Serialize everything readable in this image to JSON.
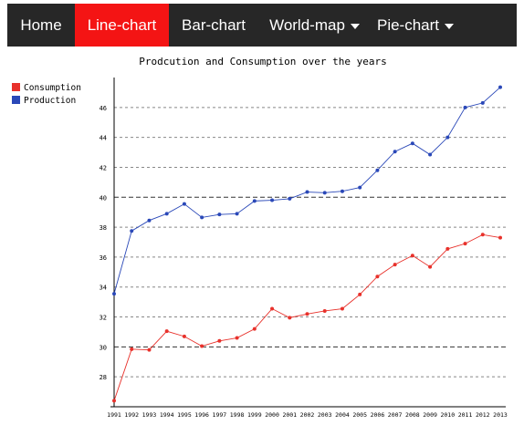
{
  "nav": {
    "items": [
      {
        "label": "Home",
        "active": false,
        "dropdown": false,
        "name": "nav-home"
      },
      {
        "label": "Line-chart",
        "active": true,
        "dropdown": false,
        "name": "nav-line-chart"
      },
      {
        "label": "Bar-chart",
        "active": false,
        "dropdown": false,
        "name": "nav-bar-chart"
      },
      {
        "label": "World-map",
        "active": false,
        "dropdown": true,
        "name": "nav-world-map"
      },
      {
        "label": "Pie-chart",
        "active": false,
        "dropdown": true,
        "name": "nav-pie-chart"
      }
    ],
    "bg_color": "#272727",
    "active_color": "#f41414"
  },
  "chart_data": {
    "type": "line",
    "title": "Prodcution and Consumption over the years",
    "xlabel": "",
    "ylabel": "",
    "x": [
      1991,
      1992,
      1993,
      1994,
      1995,
      1996,
      1997,
      1998,
      1999,
      2000,
      2001,
      2002,
      2003,
      2004,
      2005,
      2006,
      2007,
      2008,
      2009,
      2010,
      2011,
      2012,
      2013
    ],
    "ylim": [
      26,
      48
    ],
    "yticks": [
      28,
      30,
      32,
      34,
      36,
      38,
      40,
      42,
      44,
      46
    ],
    "grid": true,
    "legend_position": "top-left",
    "series": [
      {
        "name": "Consumption",
        "color": "#e8312b",
        "values": [
          26.4,
          29.85,
          29.8,
          31.05,
          30.7,
          30.05,
          30.4,
          30.6,
          31.2,
          32.55,
          31.95,
          32.2,
          32.4,
          32.55,
          33.5,
          34.7,
          35.5,
          36.1,
          35.35,
          36.55,
          36.9,
          37.5,
          37.3
        ]
      },
      {
        "name": "Production",
        "color": "#2a48b8",
        "values": [
          33.55,
          37.75,
          38.45,
          38.9,
          39.55,
          38.65,
          38.85,
          38.9,
          39.75,
          39.8,
          39.9,
          40.35,
          40.3,
          40.4,
          40.65,
          41.8,
          43.05,
          43.6,
          42.85,
          44.0,
          46.0,
          46.3,
          47.35
        ]
      }
    ]
  }
}
